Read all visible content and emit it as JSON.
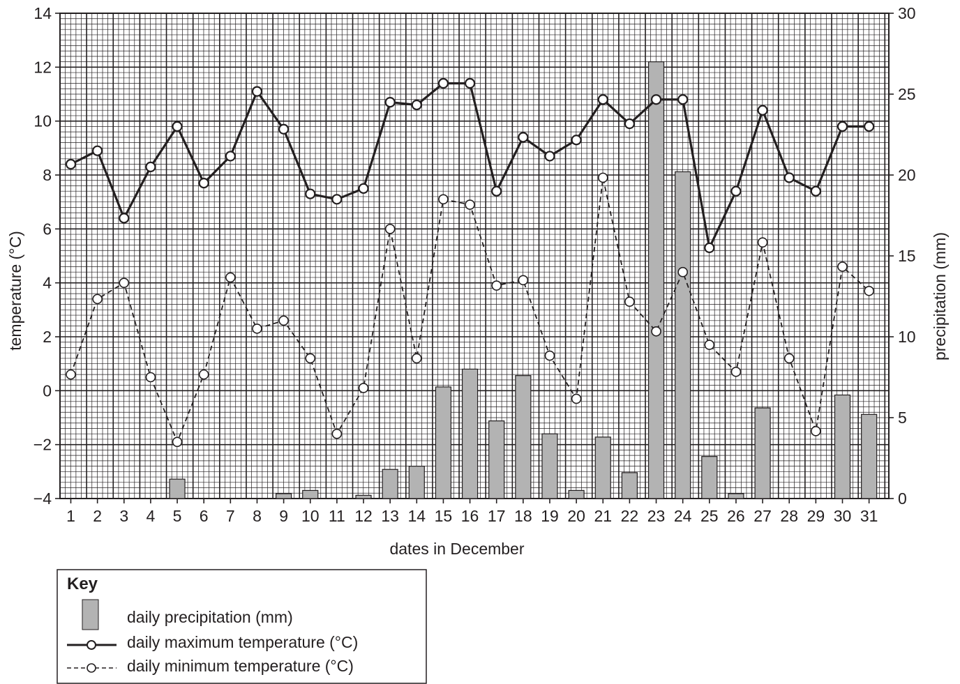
{
  "chart_data": {
    "type": "bar",
    "xlabel": "dates in December",
    "ylabel_left": "temperature (°C)",
    "ylabel_right": "precipitation (mm)",
    "ylim_left": [
      -4,
      14
    ],
    "ylim_right": [
      0,
      30
    ],
    "left_ticks": [
      -4,
      -2,
      0,
      2,
      4,
      6,
      8,
      10,
      12,
      14
    ],
    "left_tick_labels": [
      "−4",
      "−2",
      "0",
      "2",
      "4",
      "6",
      "8",
      "10",
      "12",
      "14"
    ],
    "right_ticks": [
      0,
      5,
      10,
      15,
      20,
      25,
      30
    ],
    "right_tick_labels": [
      "0",
      "5",
      "10",
      "15",
      "20",
      "25",
      "30"
    ],
    "grid": true,
    "legend_placement": "bottom-left",
    "categories": [
      "1",
      "2",
      "3",
      "4",
      "5",
      "6",
      "7",
      "8",
      "9",
      "10",
      "11",
      "12",
      "13",
      "14",
      "15",
      "16",
      "17",
      "18",
      "19",
      "20",
      "21",
      "22",
      "23",
      "24",
      "25",
      "26",
      "27",
      "28",
      "29",
      "30",
      "31"
    ],
    "series": [
      {
        "name": "daily precipitation (mm)",
        "kind": "bar",
        "axis": "right",
        "color": "#b3b3b3",
        "values": [
          0,
          0,
          0,
          0,
          1.2,
          0,
          0,
          0,
          0.3,
          0.5,
          0,
          0.2,
          1.8,
          2.0,
          6.9,
          8.0,
          4.8,
          7.6,
          4.0,
          0.5,
          3.8,
          1.6,
          27.0,
          20.2,
          2.6,
          0.3,
          5.6,
          0,
          0,
          6.4,
          5.2
        ]
      },
      {
        "name": "daily maximum temperature (°C)",
        "kind": "line",
        "axis": "left",
        "style": "solid",
        "values": [
          8.4,
          8.9,
          6.4,
          8.3,
          9.8,
          7.7,
          8.7,
          11.1,
          9.7,
          7.3,
          7.1,
          7.5,
          10.7,
          10.6,
          11.4,
          11.4,
          7.4,
          9.4,
          8.7,
          9.3,
          10.8,
          9.9,
          10.8,
          10.8,
          5.3,
          7.4,
          10.4,
          7.9,
          7.4,
          9.8,
          9.8
        ]
      },
      {
        "name": "daily minimum temperature (°C)",
        "kind": "line",
        "axis": "left",
        "style": "dashed",
        "values": [
          0.6,
          3.4,
          4.0,
          0.5,
          -1.9,
          0.6,
          4.2,
          2.3,
          2.6,
          1.2,
          -1.6,
          0.1,
          6.0,
          1.2,
          7.1,
          6.9,
          3.9,
          4.1,
          1.3,
          -0.3,
          7.9,
          3.3,
          2.2,
          4.4,
          1.7,
          0.7,
          5.5,
          1.2,
          -1.5,
          4.6,
          3.7
        ]
      }
    ]
  },
  "key": {
    "title": "Key",
    "items": [
      "daily precipitation (mm)",
      "daily maximum temperature (°C)",
      "daily minimum temperature (°C)"
    ]
  }
}
